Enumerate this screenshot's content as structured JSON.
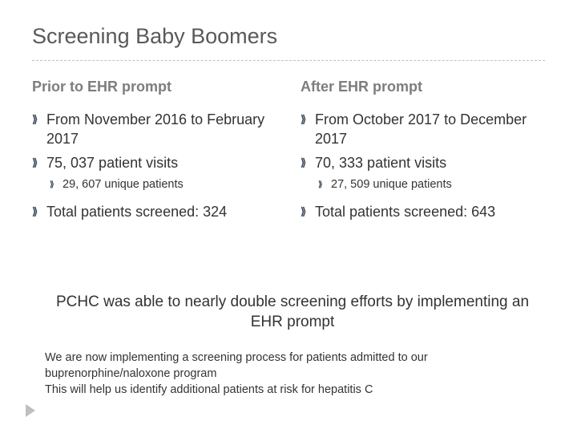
{
  "title": "Screening Baby Boomers",
  "colors": {
    "title": "#595959",
    "header": "#7d7d7d",
    "body": "#333333",
    "bullet": "#3b4b5c",
    "divider": "#bfbfbf",
    "play": "#bfbfbf",
    "background": "#ffffff"
  },
  "left": {
    "header": "Prior to EHR prompt",
    "item1": "From November 2016 to February 2017",
    "item2": "75, 037 patient visits",
    "sub1": "29, 607 unique patients",
    "item3": "Total patients screened: 324"
  },
  "right": {
    "header": "After EHR prompt",
    "item1": "From October 2017 to December 2017",
    "item2": "70, 333 patient visits",
    "sub1": "27, 509 unique patients",
    "item3": "Total patients screened: 643"
  },
  "callout": "PCHC was able to nearly double screening efforts by implementing an EHR prompt",
  "followup1": "We are now implementing a screening process for patients admitted to our buprenorphine/naloxone program",
  "followup2": "This will help us identify additional patients at risk for hepatitis C",
  "bullet_glyph": "⟫",
  "fontsize": {
    "title": 27,
    "header": 18,
    "body": 18,
    "sub": 14.5,
    "callout": 19,
    "followup": 14.5
  }
}
